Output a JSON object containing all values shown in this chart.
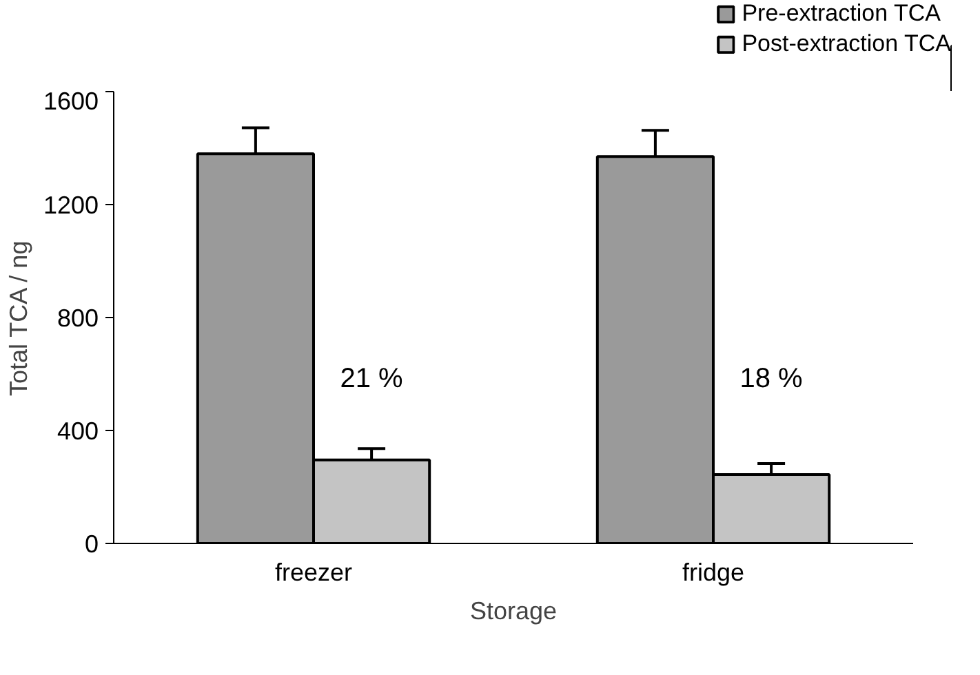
{
  "chart_data": {
    "type": "bar",
    "xlabel": "Storage",
    "ylabel": "Total TCA / ng",
    "categories": [
      "freezer",
      "fridge"
    ],
    "series": [
      {
        "name": "Pre-extraction TCA",
        "color": "#9a9a9a",
        "values": [
          1380,
          1370
        ],
        "errors": [
          92,
          93
        ]
      },
      {
        "name": "Post-extraction TCA",
        "color": "#c4c4c4",
        "values": [
          296,
          244
        ],
        "errors": [
          40,
          39
        ]
      }
    ],
    "ylim": [
      0,
      1600
    ],
    "yticks": [
      0,
      400,
      800,
      1200,
      1600
    ],
    "grid": false,
    "legend": "top right",
    "annotations": [
      {
        "text": "21 %",
        "x": "freezer",
        "y": 530
      },
      {
        "text": "18 %",
        "x": "fridge",
        "y": 530
      }
    ]
  }
}
